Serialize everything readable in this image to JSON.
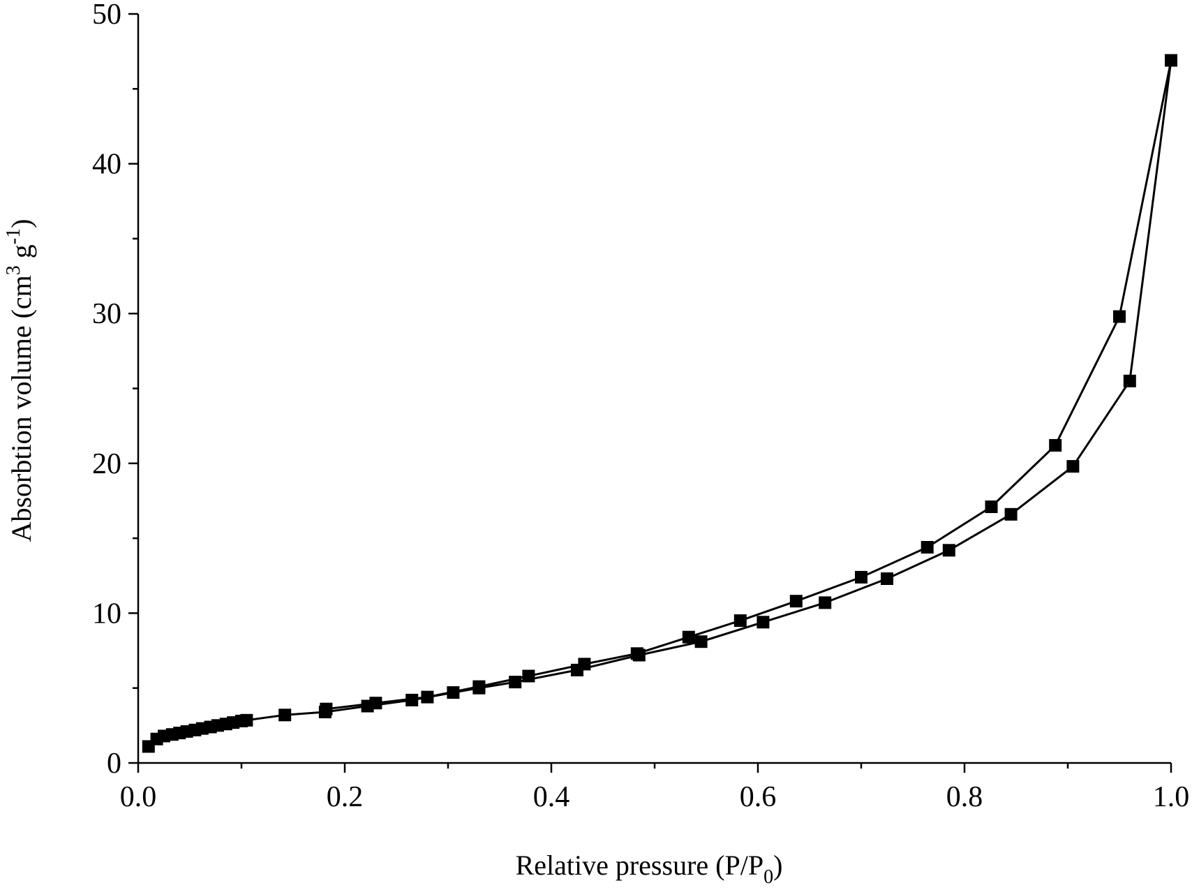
{
  "chart_data": {
    "type": "scatter",
    "title": "",
    "xlabel": "Relative pressure (P/P",
    "xlabel_sub": "0",
    "xlabel_end": ")",
    "ylabel": "Absorbtion volume (cm",
    "ylabel_sup1": "3",
    "ylabel_mid": " g",
    "ylabel_sup2": "-1",
    "ylabel_end": ")",
    "xlim": [
      0.0,
      1.0
    ],
    "ylim": [
      0,
      50
    ],
    "x_ticks": [
      "0.0",
      "0.2",
      "0.4",
      "0.6",
      "0.8",
      "1.0"
    ],
    "y_ticks": [
      "0",
      "10",
      "20",
      "30",
      "40",
      "50"
    ],
    "grid": false,
    "marker": "square",
    "line_style": "solid",
    "color": "#000000",
    "series": [
      {
        "x": [
          0.01,
          0.018,
          0.025,
          0.033,
          0.04,
          0.047,
          0.055,
          0.062,
          0.07,
          0.077,
          0.085,
          0.092,
          0.1,
          0.105,
          0.142,
          0.181,
          0.222,
          0.265,
          0.305,
          0.33,
          0.365,
          0.425,
          0.485,
          0.545,
          0.605,
          0.665,
          0.725,
          0.785,
          0.845,
          0.905,
          0.96,
          1.0
        ],
        "y": [
          1.1,
          1.6,
          1.8,
          1.9,
          2.0,
          2.1,
          2.2,
          2.3,
          2.4,
          2.5,
          2.6,
          2.7,
          2.8,
          2.85,
          3.2,
          3.4,
          3.8,
          4.2,
          4.7,
          5.0,
          5.4,
          6.2,
          7.2,
          8.1,
          9.4,
          10.7,
          12.3,
          14.2,
          16.6,
          19.8,
          25.5,
          46.9
        ]
      },
      {
        "x": [
          1.0,
          0.95,
          0.888,
          0.826,
          0.764,
          0.7,
          0.637,
          0.583,
          0.533,
          0.483,
          0.432,
          0.378,
          0.33,
          0.28,
          0.23,
          0.182
        ],
        "y": [
          46.9,
          29.8,
          21.2,
          17.1,
          14.4,
          12.4,
          10.8,
          9.5,
          8.4,
          7.3,
          6.6,
          5.8,
          5.1,
          4.4,
          4.0,
          3.6
        ]
      }
    ]
  }
}
